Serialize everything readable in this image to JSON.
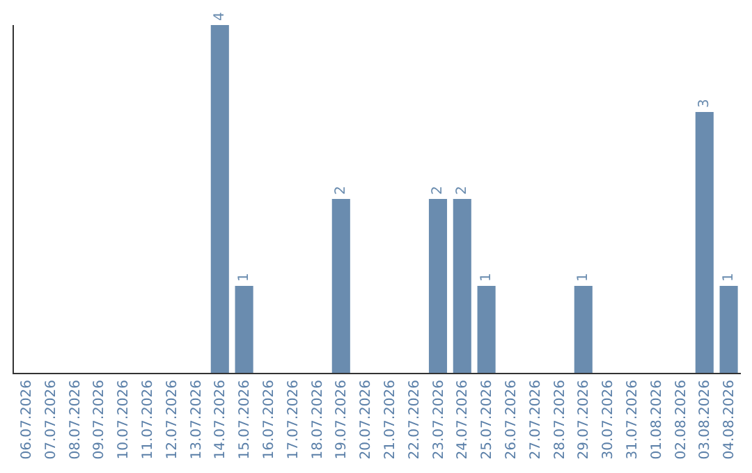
{
  "chart_data": {
    "type": "bar",
    "categories": [
      "06.07.2026",
      "07.07.2026",
      "08.07.2026",
      "09.07.2026",
      "10.07.2026",
      "11.07.2026",
      "12.07.2026",
      "13.07.2026",
      "14.07.2026",
      "15.07.2026",
      "16.07.2026",
      "17.07.2026",
      "18.07.2026",
      "19.07.2026",
      "20.07.2026",
      "21.07.2026",
      "22.07.2026",
      "23.07.2026",
      "24.07.2026",
      "25.07.2026",
      "26.07.2026",
      "27.07.2026",
      "28.07.2026",
      "29.07.2026",
      "30.07.2026",
      "31.07.2026",
      "01.08.2026",
      "02.08.2026",
      "03.08.2026",
      "04.08.2026"
    ],
    "values": [
      0,
      0,
      0,
      0,
      0,
      0,
      0,
      0,
      4,
      1,
      0,
      0,
      0,
      2,
      0,
      0,
      0,
      2,
      2,
      1,
      0,
      0,
      0,
      1,
      0,
      0,
      0,
      0,
      3,
      1
    ],
    "value_labels": [
      null,
      null,
      null,
      null,
      null,
      null,
      null,
      null,
      "4",
      "1",
      null,
      null,
      null,
      "2",
      null,
      null,
      null,
      "2",
      "2",
      "1",
      null,
      null,
      null,
      "1",
      null,
      null,
      null,
      null,
      "3",
      "1"
    ],
    "color": "#6a8caf"
  }
}
